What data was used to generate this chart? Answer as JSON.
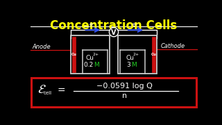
{
  "title": "Concentration Cells",
  "title_color": "#FFFF00",
  "bg_color": "#000000",
  "anode_label": "Anode",
  "cathode_label": "Cathode",
  "wire_color": "#ffffff",
  "arrow_color": "#3355ff",
  "formula_box_edge": "#cc1111",
  "formula_box_fill": "#000000",
  "cell_box_color": "#cccccc",
  "electrode_color": "#cc1111",
  "electrode_text_color": "#cc1111",
  "handwriting_color": "#ffffff",
  "green_color": "#22cc22",
  "cu_ion_color": "#ffffff",
  "volt_bg": "#000000",
  "volt_fg": "#ffffff",
  "anode_line_color": "#cc1111",
  "cathode_line_color": "#cc1111"
}
